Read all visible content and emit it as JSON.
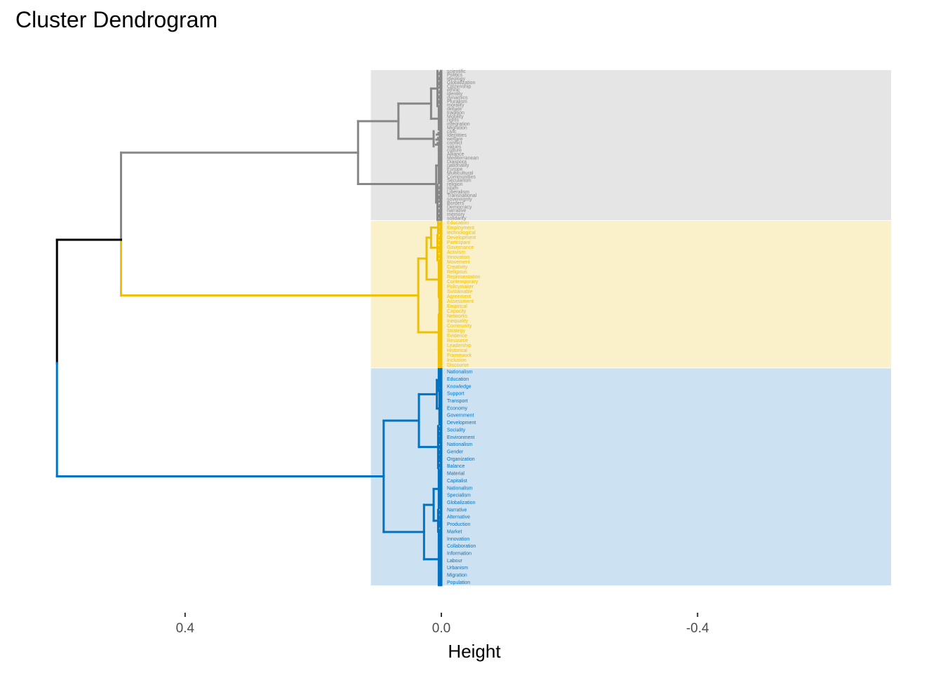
{
  "chart_data": {
    "type": "dendrogram",
    "title": "Cluster Dendrogram",
    "xlabel": "Height",
    "x_axis_reversed": true,
    "xlim": [
      0.6,
      -0.7
    ],
    "x_ticks": [
      0.4,
      0.0,
      -0.4
    ],
    "x_tick_labels": [
      "0.4",
      "0.0",
      "-0.4"
    ],
    "grid": false,
    "root_color": "#000000",
    "root_height": 0.6,
    "clusters": [
      {
        "id": 1,
        "color": "#878787",
        "band_color": "#e5e5e5",
        "band_start_height": 0.11,
        "leaf_count": 90,
        "merge_height_to_sibling": 0.5,
        "subtree": {
          "h": 0.13,
          "c": [
            {
              "h": 0.067,
              "c": [
                {
                  "h": 0.016,
                  "c": [
                    {
                      "h": 0.006,
                      "n": 22
                    },
                    {
                      "h": 0.004,
                      "n": 14
                    }
                  ]
                },
                {
                  "h": 0.012,
                  "n": 10
                }
              ]
            },
            {
              "h": 0.008,
              "c": [
                {
                  "h": 0.004,
                  "n": 22
                },
                {
                  "h": 0.006,
                  "n": 22
                }
              ]
            }
          ]
        }
      },
      {
        "id": 2,
        "color": "#efc000",
        "band_color": "#faf0ca",
        "band_start_height": 0.11,
        "leaf_count": 88,
        "merge_height_to_sibling": 0.5,
        "subtree": {
          "h": 0.036,
          "c": [
            {
              "h": 0.023,
              "c": [
                {
                  "h": 0.016,
                  "c": [
                    {
                      "h": 0.005,
                      "n": 8
                    },
                    {
                      "h": 0.006,
                      "n": 16
                    }
                  ]
                },
                {
                  "h": 0.004,
                  "n": 22
                }
              ]
            },
            {
              "h": 0.004,
              "c": [
                {
                  "h": 0.003,
                  "n": 20
                },
                {
                  "h": 0.004,
                  "n": 22
                }
              ]
            }
          ]
        }
      },
      {
        "id": 3,
        "color": "#0073c2",
        "band_color": "#cce2f2",
        "band_start_height": 0.11,
        "leaf_count": 130,
        "merge_height_to_sibling": 0.6,
        "subtree": {
          "h": 0.09,
          "c": [
            {
              "h": 0.035,
              "c": [
                {
                  "h": 0.007,
                  "c": [
                    {
                      "h": 0.004,
                      "n": 14
                    },
                    {
                      "h": 0.003,
                      "n": 20
                    }
                  ]
                },
                {
                  "h": 0.005,
                  "n": 26
                }
              ]
            },
            {
              "h": 0.027,
              "c": [
                {
                  "h": 0.012,
                  "c": [
                    {
                      "h": 0.004,
                      "n": 24
                    },
                    {
                      "h": 0.005,
                      "n": 14
                    }
                  ]
                },
                {
                  "h": 0.004,
                  "n": 32
                }
              ]
            }
          ]
        }
      }
    ],
    "leaf_labels": {
      "1": [
        "scientific",
        "Politics",
        "ideology",
        "Globalization",
        "Citizenship",
        "ethnic",
        "identity",
        "dynamics",
        "Pluralism",
        "morality",
        "debate",
        "tradition",
        "Mobility",
        "rights",
        "integration",
        "Migration",
        "civic",
        "Identities",
        "welfare",
        "conflict",
        "values",
        "culture",
        "Alliance",
        "Mediterranean",
        "Diaspora",
        "nationality",
        "Europe",
        "Multicultural",
        "Communities",
        "Secularism",
        "religion",
        "islam",
        "Liberalism",
        "Transnational",
        "sovereignty",
        "Borders",
        "Democracy",
        "narrative",
        "memory",
        "solidarity"
      ],
      "2": [
        "Education",
        "Employment",
        "technological",
        "Development",
        "Participant",
        "Governance",
        "Activism",
        "Innovation",
        "Movement",
        "Creativity",
        "Religious",
        "Representation",
        "Contemporary",
        "Policymaker",
        "Sustainable",
        "Agreement",
        "Assessment",
        "Empirical",
        "Capacity",
        "Networks",
        "Inequality",
        "Community",
        "Strategy",
        "Evidence",
        "Resource",
        "Leadership",
        "Historical",
        "Framework",
        "Inclusion",
        "Discourse"
      ],
      "3": [
        "Nationalism",
        "Education",
        "Knowledge",
        "Support",
        "Transport",
        "Economy",
        "Government",
        "Development",
        "Sociality",
        "Environment",
        "Nationalism",
        "Gender",
        "Organization",
        "Balance",
        "Material",
        "Capitalist",
        "Nationalism",
        "Specialism",
        "Globalization",
        "Narrative",
        "Alternative",
        "Production",
        "Market",
        "Innovation",
        "Collaboration",
        "Information",
        "Labour",
        "Urbanism",
        "Migration",
        "Population"
      ]
    }
  }
}
